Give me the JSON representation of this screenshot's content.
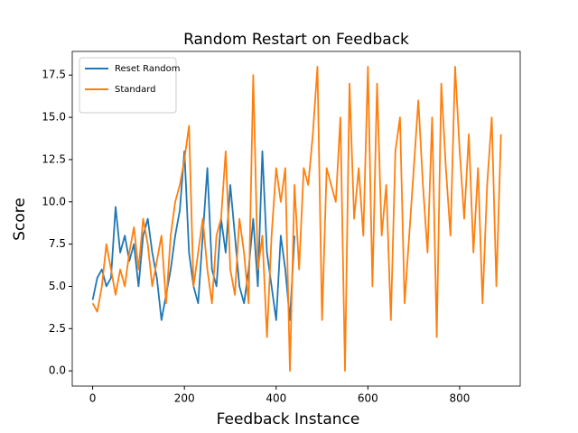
{
  "chart_data": {
    "type": "line",
    "title": "Random Restart on Feedback",
    "x_label": "Feedback Instance",
    "y_label": "Score",
    "xlim": [
      -44.5,
      932
    ],
    "ylim": [
      -0.9,
      18.9
    ],
    "xticks": [
      0,
      200,
      400,
      600,
      800
    ],
    "yticks": [
      {
        "value": 0,
        "label": "0.0"
      },
      2.5,
      {
        "value": 5,
        "label": "5.0"
      },
      7.5,
      {
        "value": 10,
        "label": "10.0"
      },
      12.5,
      {
        "value": 15,
        "label": "15.0"
      },
      17.5
    ],
    "legend": "upper left",
    "series": [
      {
        "name": "Reset Random",
        "color": "#1f77b4",
        "x": [
          0,
          10,
          20,
          30,
          40,
          50,
          60,
          70,
          80,
          90,
          100,
          110,
          120,
          130,
          140,
          150,
          160,
          170,
          180,
          190,
          200,
          210,
          220,
          230,
          240,
          250,
          260,
          270,
          280,
          290,
          300,
          310,
          320,
          330,
          340,
          350,
          360,
          370,
          380,
          390,
          400,
          410,
          420,
          430,
          440
        ],
        "values": [
          4.2,
          5.5,
          6,
          5,
          5.5,
          9.7,
          7,
          8,
          6.5,
          7.5,
          5,
          8,
          9,
          7,
          5.5,
          3,
          4.5,
          6,
          8,
          9.5,
          13,
          7,
          5,
          4,
          8,
          12,
          6,
          5,
          9,
          7,
          11,
          8,
          5,
          4,
          6,
          9,
          5,
          13,
          7,
          5,
          3,
          8,
          6,
          3,
          8
        ]
      },
      {
        "name": "Standard",
        "color": "#ff7f0e",
        "x": [
          0,
          10,
          20,
          30,
          40,
          50,
          60,
          70,
          80,
          90,
          100,
          110,
          120,
          130,
          140,
          150,
          160,
          170,
          180,
          190,
          200,
          210,
          220,
          230,
          240,
          250,
          260,
          270,
          280,
          290,
          300,
          310,
          320,
          330,
          340,
          350,
          360,
          370,
          380,
          390,
          400,
          410,
          420,
          430,
          440,
          450,
          460,
          470,
          480,
          490,
          500,
          510,
          520,
          530,
          540,
          550,
          560,
          570,
          580,
          590,
          600,
          610,
          620,
          630,
          640,
          650,
          660,
          670,
          680,
          690,
          700,
          710,
          720,
          730,
          740,
          750,
          760,
          770,
          780,
          790,
          800,
          810,
          820,
          830,
          840,
          850,
          860,
          870,
          880,
          890
        ],
        "values": [
          4,
          3.5,
          5,
          7.5,
          6,
          4.5,
          6,
          5,
          7,
          8.5,
          6,
          9,
          7.5,
          5,
          6.5,
          8,
          4,
          8,
          10,
          11,
          12.5,
          14.5,
          5,
          7,
          9,
          6,
          4,
          8,
          9,
          13,
          6,
          4.5,
          9,
          7,
          4,
          17.5,
          6,
          8,
          2,
          8,
          12,
          10,
          12,
          0,
          11,
          6,
          12,
          11,
          14,
          18,
          3,
          12,
          11,
          10,
          15,
          0,
          17,
          9,
          12,
          8,
          18,
          5,
          17,
          8,
          11,
          3,
          13,
          15,
          4,
          8,
          12,
          16,
          11,
          7,
          15,
          2,
          17,
          12,
          8,
          18,
          13,
          9,
          14,
          7,
          12,
          4,
          11,
          15,
          5,
          14
        ]
      }
    ]
  }
}
